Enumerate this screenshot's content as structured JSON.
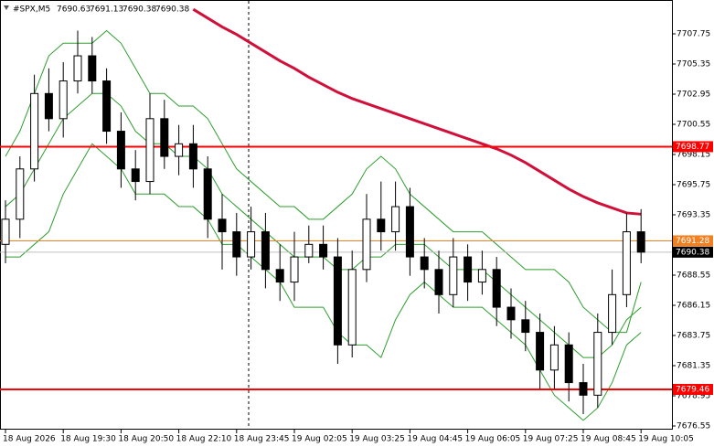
{
  "chart_data": {
    "type": "candlestick",
    "title": "#SPX,M5",
    "header_ohlc": [
      7690.63,
      7691.13,
      7690.38,
      7690.38
    ],
    "categories": [
      "18 Aug 2026",
      null,
      null,
      null,
      "18 Aug 19:30",
      null,
      null,
      null,
      "18 Aug 20:50",
      null,
      null,
      null,
      "18 Aug 22:10",
      null,
      null,
      null,
      "18 Aug 23:45",
      null,
      null,
      null,
      "19 Aug 02:05",
      null,
      null,
      null,
      "19 Aug 03:25",
      null,
      null,
      null,
      "19 Aug 04:45",
      null,
      null,
      null,
      "19 Aug 06:05",
      null,
      null,
      null,
      "19 Aug 07:25",
      null,
      null,
      null,
      "19 Aug 08:45",
      null,
      null,
      null,
      "19 Aug 10:05"
    ],
    "open": [
      7691,
      7693,
      7697,
      7703,
      7701,
      7704,
      7706,
      7704,
      7700,
      7697,
      7696,
      7701,
      7698,
      7699,
      7697,
      7693,
      7692,
      7690,
      7692,
      7689,
      7688,
      7690,
      7691,
      7690,
      7683,
      7689,
      7693,
      7692,
      7694,
      7690,
      7689,
      7687,
      7690,
      7688,
      7689,
      7686,
      7685,
      7684,
      7681,
      7683,
      7680,
      7679,
      7684,
      7687,
      7692
    ],
    "high": [
      7694.5,
      7698,
      7704.5,
      7705,
      7705.5,
      7708,
      7707.5,
      7705,
      7701.5,
      7698.5,
      7703,
      7702.5,
      7700.5,
      7700.5,
      7698,
      7695,
      7693.5,
      7694,
      7693.5,
      7691,
      7692,
      7692.5,
      7692.5,
      7691.5,
      7690.5,
      7695,
      7696,
      7696,
      7695.5,
      7691.5,
      7690.5,
      7691.5,
      7691,
      7690.5,
      7690,
      7687.5,
      7686.5,
      7685.5,
      7684.5,
      7684,
      7681.5,
      7685.5,
      7689,
      7693.5,
      7693.8
    ],
    "low": [
      7689.5,
      7691.5,
      7696,
      7700,
      7699.5,
      7703,
      7703,
      7699,
      7695.5,
      7694.5,
      7695,
      7697,
      7696.5,
      7695.5,
      7691.5,
      7689,
      7688.5,
      7689,
      7687.5,
      7686.5,
      7686.5,
      7689.5,
      7689,
      7681.5,
      7682,
      7688,
      7690.5,
      7690.5,
      7688.5,
      7687.5,
      7685.5,
      7686,
      7686.5,
      7687,
      7684.5,
      7683.5,
      7682.5,
      7679.5,
      7679.5,
      7678.5,
      7677.5,
      7678,
      7683,
      7686,
      7689.5
    ],
    "close": [
      7693,
      7697,
      7703,
      7701,
      7704,
      7706,
      7704,
      7700,
      7697,
      7696,
      7701,
      7698,
      7699,
      7697,
      7693,
      7692,
      7690,
      7692,
      7689,
      7688,
      7690,
      7691,
      7690,
      7683,
      7689,
      7693,
      7692,
      7694,
      7690,
      7689,
      7687,
      7690,
      7688,
      7689,
      7686,
      7685,
      7684,
      7681,
      7683,
      7680,
      7679,
      7684,
      7687,
      7692,
      7690.38
    ],
    "lines": [
      {
        "color": "#2e9e2e",
        "values": [
          7698,
          7700,
          7703,
          7706,
          7707,
          7707,
          7707,
          7708,
          7707,
          7705,
          7703,
          7703,
          7702,
          7702,
          7701,
          7699,
          7697,
          7696,
          7695,
          7694,
          7694,
          7693,
          7693,
          7694,
          7695,
          7697,
          7698,
          7697,
          7695,
          7694,
          7693,
          7692,
          7692,
          7692,
          7691,
          7690,
          7689,
          7689,
          7689,
          7688,
          7686,
          7685,
          7684,
          7684,
          7688
        ]
      },
      {
        "color": "#2e9e2e",
        "values": [
          7694,
          7695,
          7697,
          7699,
          7701,
          7702,
          7703,
          7703,
          7702,
          7700,
          7699,
          7699,
          7698,
          7698,
          7697,
          7695,
          7694,
          7693,
          7692,
          7691,
          7690,
          7690,
          7690,
          7689,
          7689,
          7690,
          7690,
          7691,
          7691,
          7691,
          7690,
          7689,
          7689,
          7689,
          7688,
          7687,
          7686,
          7685,
          7684,
          7683,
          7682,
          7682,
          7683,
          7685,
          7686
        ]
      },
      {
        "color": "#2e9e2e",
        "values": [
          7690,
          7690,
          7691,
          7692,
          7695,
          7697,
          7699,
          7698,
          7697,
          7695,
          7695,
          7695,
          7694,
          7694,
          7693,
          7691,
          7691,
          7690,
          7689,
          7688,
          7686,
          7686,
          7686,
          7684,
          7683,
          7683,
          7682,
          7685,
          7687,
          7688,
          7687,
          7686,
          7686,
          7686,
          7685,
          7684,
          7683,
          7681,
          7679,
          7678,
          7677,
          7678,
          7680,
          7683,
          7684
        ]
      },
      {
        "color": "#d0103a",
        "values": [
          null,
          null,
          null,
          null,
          null,
          null,
          null,
          null,
          null,
          null,
          null,
          null,
          null,
          7709.7,
          7709.0,
          7708.3,
          7707.7,
          7707.0,
          7706.3,
          7705.6,
          7705.0,
          7704.3,
          7703.7,
          7703.1,
          7702.6,
          7702.2,
          7701.8,
          7701.4,
          7701.0,
          7700.6,
          7700.2,
          7699.8,
          7699.4,
          7699.0,
          7698.6,
          7698.1,
          7697.5,
          7696.8,
          7696.1,
          7695.4,
          7694.8,
          7694.3,
          7693.9,
          7693.5,
          7693.4
        ]
      }
    ],
    "hlines": [
      {
        "value": 7698.77,
        "color": "#ff0000"
      },
      {
        "value": 7691.28,
        "color": "#f08020"
      },
      {
        "value": 7679.46,
        "color": "#ff0000"
      },
      {
        "value": 7690.38,
        "color": "#c0c0c0"
      }
    ],
    "ylim": [
      7676.26,
      7710.44
    ],
    "yticks": [
      7707.75,
      7705.35,
      7702.95,
      7700.55,
      7698.15,
      7695.75,
      7693.35,
      7688.55,
      7686.15,
      7683.75,
      7681.35,
      7678.95,
      7676.55
    ],
    "grid": false
  }
}
